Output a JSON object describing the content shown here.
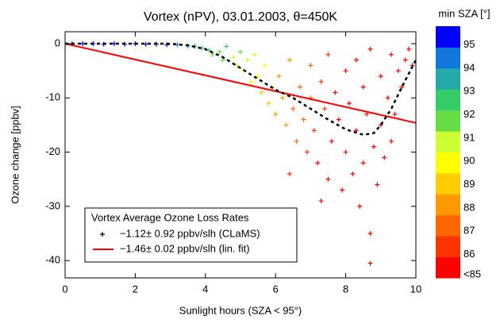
{
  "chart_data": {
    "type": "scatter",
    "title": "Vortex (nPV), 03.01.2003, θ=450K",
    "xlabel": "Sunlight hours (SZA < 95°)",
    "ylabel": "Ozone change [ppbv]",
    "xlim": [
      0,
      10
    ],
    "ylim": [
      -43.2,
      2.2
    ],
    "xticks": [
      0,
      2,
      4,
      6,
      8,
      10
    ],
    "yticks": [
      -40,
      -30,
      -20,
      -10,
      0
    ],
    "legend_title": "Vortex Average Ozone Loss Rates",
    "legend": "lower left",
    "series": [
      {
        "name": "−1.12± 0.92 ppbv/slh (CLaMS)",
        "color": "#000000",
        "kind": "points",
        "x": [
          0.2,
          0.5,
          0.8,
          1.1,
          1.4,
          1.7,
          2.0,
          2.3,
          2.6,
          2.9,
          3.2,
          3.5,
          3.7,
          3.9,
          4.1,
          4.2,
          4.4,
          4.5,
          4.6,
          4.8,
          4.9,
          5.0,
          5.1,
          5.2,
          5.3,
          5.4,
          5.5,
          5.6,
          5.7,
          5.8,
          5.9,
          6.0,
          6.1,
          6.2,
          6.3,
          6.4,
          6.5,
          6.6,
          6.7,
          6.8,
          6.9,
          7.0,
          7.0,
          7.1,
          7.2,
          7.3,
          7.4,
          7.5,
          7.5,
          7.6,
          7.7,
          7.8,
          7.9,
          8.0,
          8.0,
          8.1,
          8.2,
          8.3,
          8.3,
          8.4,
          8.5,
          8.5,
          8.6,
          8.7,
          8.7,
          8.8,
          8.9,
          9.0,
          9.0,
          9.1,
          9.2,
          9.3,
          9.3,
          9.4,
          9.5,
          9.6,
          9.7,
          9.8,
          9.9,
          8.7,
          7.3,
          6.4
        ],
        "y": [
          0,
          0,
          0,
          -0.1,
          0,
          -0.1,
          0,
          -0.1,
          -0.1,
          -0.2,
          -0.2,
          -0.4,
          -0.5,
          -0.8,
          -1.2,
          -2,
          -1.5,
          -3,
          -0.5,
          -2.5,
          -4,
          -1.5,
          -5,
          -3,
          -7,
          -2,
          -6,
          -9,
          -4,
          -11,
          -8,
          -13,
          -6,
          -10,
          -15,
          -3,
          -12,
          -18,
          -8,
          -14,
          -20,
          -10,
          -4,
          -16,
          -22,
          -7,
          -12,
          -25,
          -2,
          -18,
          -9,
          -14,
          -27,
          -5,
          -20,
          -11,
          -24,
          -3,
          -16,
          -30,
          -8,
          -22,
          -13,
          -35,
          -1,
          -19,
          -26,
          -6,
          -15,
          -21,
          -10,
          -2,
          -18,
          -13,
          -5,
          -8,
          -3,
          -1,
          -4,
          -40.5,
          -29,
          -24
        ],
        "z": [
          95.5,
          95.5,
          95.5,
          95.5,
          95.5,
          95.5,
          95.5,
          95.3,
          95.3,
          95,
          94.8,
          94.5,
          94,
          93,
          92.5,
          92,
          92,
          91.5,
          92.5,
          91,
          91,
          91.5,
          90,
          90.5,
          89.5,
          90.5,
          89.5,
          89,
          90,
          89,
          89,
          88.5,
          88.5,
          88,
          88,
          88.5,
          87.5,
          87.5,
          87.5,
          87,
          86.5,
          87,
          87,
          86,
          85.5,
          86,
          86,
          85.5,
          86,
          85.5,
          85.5,
          85.5,
          85,
          85,
          85,
          85,
          85,
          85,
          85,
          85,
          85,
          85,
          85,
          85,
          85,
          85,
          85,
          85,
          85,
          85,
          85,
          85,
          85,
          85,
          85,
          85,
          85,
          85,
          85,
          85,
          85.5,
          86.5
        ]
      },
      {
        "name": "−1.46± 0.02 ppbv/slh (lin. fit)",
        "color": "#ff0000",
        "kind": "line",
        "x": [
          0,
          10
        ],
        "y": [
          0,
          -14.6
        ]
      },
      {
        "color": "#000000",
        "kind": "dashed",
        "x": [
          0,
          2,
          3,
          3.5,
          4,
          4.5,
          5,
          5.5,
          6,
          6.5,
          7,
          7.5,
          8,
          8.5,
          8.8,
          9,
          9.3,
          9.6,
          10
        ],
        "y": [
          0,
          0,
          0,
          -0.3,
          -1,
          -2.5,
          -4.5,
          -6.5,
          -8.5,
          -10,
          -12,
          -14,
          -15.8,
          -16.8,
          -16.5,
          -15,
          -12,
          -8,
          -3
        ]
      }
    ],
    "colorbar": {
      "title": "min SZA [°]",
      "clim": [
        85,
        95.8
      ],
      "ticks": [
        95,
        94,
        93,
        92,
        91,
        90,
        89,
        88,
        87,
        86,
        {
          "value": 85,
          "label": "<85"
        }
      ],
      "colors": [
        "#ff0000",
        "#ff3300",
        "#ff6600",
        "#ff9900",
        "#ffcc00",
        "#ffff00",
        "#ccff33",
        "#66dd44",
        "#33cc66",
        "#22aaaa",
        "#1177dd",
        "#0000ff"
      ]
    }
  }
}
